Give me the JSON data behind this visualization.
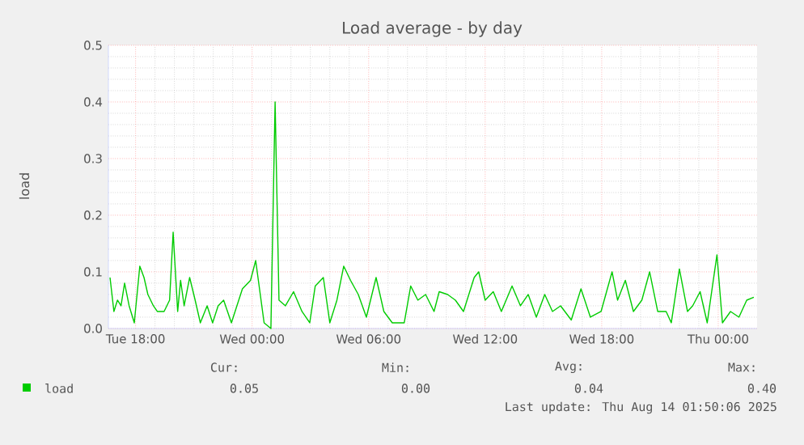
{
  "chart_data": {
    "type": "line",
    "title": "Load average - by day",
    "ylabel": "load",
    "x": [
      "2025-08-12T16:41",
      "2025-08-12T16:53",
      "2025-08-12T17:04",
      "2025-08-12T17:15",
      "2025-08-12T17:26",
      "2025-08-12T17:40",
      "2025-08-12T17:56",
      "2025-08-12T18:13",
      "2025-08-12T18:26",
      "2025-08-12T18:38",
      "2025-08-12T18:55",
      "2025-08-12T19:07",
      "2025-08-12T19:28",
      "2025-08-12T19:45",
      "2025-08-12T19:56",
      "2025-08-12T20:10",
      "2025-08-12T20:19",
      "2025-08-12T20:30",
      "2025-08-12T20:47",
      "2025-08-12T21:04",
      "2025-08-12T21:20",
      "2025-08-12T21:41",
      "2025-08-12T21:58",
      "2025-08-12T22:15",
      "2025-08-12T22:32",
      "2025-08-12T22:56",
      "2025-08-12T23:30",
      "2025-08-12T23:55",
      "2025-08-13T00:11",
      "2025-08-13T00:37",
      "2025-08-13T00:58",
      "2025-08-13T01:11",
      "2025-08-13T01:23",
      "2025-08-13T01:43",
      "2025-08-13T02:08",
      "2025-08-13T02:34",
      "2025-08-13T02:58",
      "2025-08-13T03:15",
      "2025-08-13T03:40",
      "2025-08-13T04:00",
      "2025-08-13T04:22",
      "2025-08-13T04:43",
      "2025-08-13T05:04",
      "2025-08-13T05:28",
      "2025-08-13T05:53",
      "2025-08-13T06:23",
      "2025-08-13T06:47",
      "2025-08-13T07:13",
      "2025-08-13T07:50",
      "2025-08-13T08:10",
      "2025-08-13T08:32",
      "2025-08-13T08:56",
      "2025-08-13T09:22",
      "2025-08-13T09:38",
      "2025-08-13T10:04",
      "2025-08-13T10:28",
      "2025-08-13T10:53",
      "2025-08-13T11:26",
      "2025-08-13T11:40",
      "2025-08-13T12:00",
      "2025-08-13T12:25",
      "2025-08-13T12:50",
      "2025-08-13T13:23",
      "2025-08-13T13:49",
      "2025-08-13T14:13",
      "2025-08-13T14:38",
      "2025-08-13T15:04",
      "2025-08-13T15:28",
      "2025-08-13T15:53",
      "2025-08-13T16:26",
      "2025-08-13T16:56",
      "2025-08-13T17:25",
      "2025-08-13T17:58",
      "2025-08-13T18:32",
      "2025-08-13T18:49",
      "2025-08-13T19:13",
      "2025-08-13T19:38",
      "2025-08-13T20:04",
      "2025-08-13T20:28",
      "2025-08-13T20:53",
      "2025-08-13T21:19",
      "2025-08-13T21:35",
      "2025-08-13T22:00",
      "2025-08-13T22:25",
      "2025-08-13T22:41",
      "2025-08-13T23:04",
      "2025-08-13T23:26",
      "2025-08-13T23:56",
      "2025-08-14T00:13",
      "2025-08-14T00:38",
      "2025-08-14T01:04",
      "2025-08-14T01:28",
      "2025-08-14T01:50"
    ],
    "series": [
      {
        "name": "load",
        "color": "#00cc00",
        "values": [
          0.09,
          0.03,
          0.05,
          0.04,
          0.08,
          0.04,
          0.01,
          0.11,
          0.09,
          0.06,
          0.04,
          0.03,
          0.03,
          0.05,
          0.17,
          0.03,
          0.085,
          0.04,
          0.09,
          0.05,
          0.01,
          0.04,
          0.01,
          0.04,
          0.05,
          0.01,
          0.07,
          0.085,
          0.12,
          0.01,
          0.0,
          0.4,
          0.05,
          0.04,
          0.065,
          0.03,
          0.01,
          0.075,
          0.09,
          0.01,
          0.05,
          0.11,
          0.085,
          0.06,
          0.02,
          0.09,
          0.03,
          0.01,
          0.01,
          0.075,
          0.05,
          0.06,
          0.03,
          0.065,
          0.06,
          0.05,
          0.03,
          0.09,
          0.1,
          0.05,
          0.065,
          0.03,
          0.075,
          0.04,
          0.06,
          0.02,
          0.06,
          0.03,
          0.04,
          0.015,
          0.07,
          0.02,
          0.03,
          0.1,
          0.05,
          0.085,
          0.03,
          0.05,
          0.1,
          0.03,
          0.03,
          0.01,
          0.105,
          0.03,
          0.04,
          0.065,
          0.01,
          0.13,
          0.01,
          0.03,
          0.02,
          0.05,
          0.055
        ]
      }
    ],
    "xlim": [
      "2025-08-12T16:36",
      "2025-08-14T02:00"
    ],
    "ylim": [
      0,
      0.5
    ],
    "xticks": [
      {
        "value": "2025-08-12T18:00",
        "label": "Tue 18:00"
      },
      {
        "value": "2025-08-13T00:00",
        "label": "Wed 00:00"
      },
      {
        "value": "2025-08-13T06:00",
        "label": "Wed 06:00"
      },
      {
        "value": "2025-08-13T12:00",
        "label": "Wed 12:00"
      },
      {
        "value": "2025-08-13T18:00",
        "label": "Wed 18:00"
      },
      {
        "value": "2025-08-14T00:00",
        "label": "Thu 00:00"
      }
    ],
    "yticks": [
      {
        "value": 0,
        "label": "0.0"
      },
      0.1,
      0.2,
      0.3,
      0.4,
      0.5
    ],
    "grid": true,
    "legend": "bottom left",
    "marker": "none",
    "line_style": "solid",
    "annotations": [
      "Cur:",
      "Min:",
      "Avg:",
      "Max:",
      "0.05",
      "0.00",
      "0.04",
      "0.40",
      "Last update: Thu Aug 14 01:50:06 2025"
    ]
  }
}
